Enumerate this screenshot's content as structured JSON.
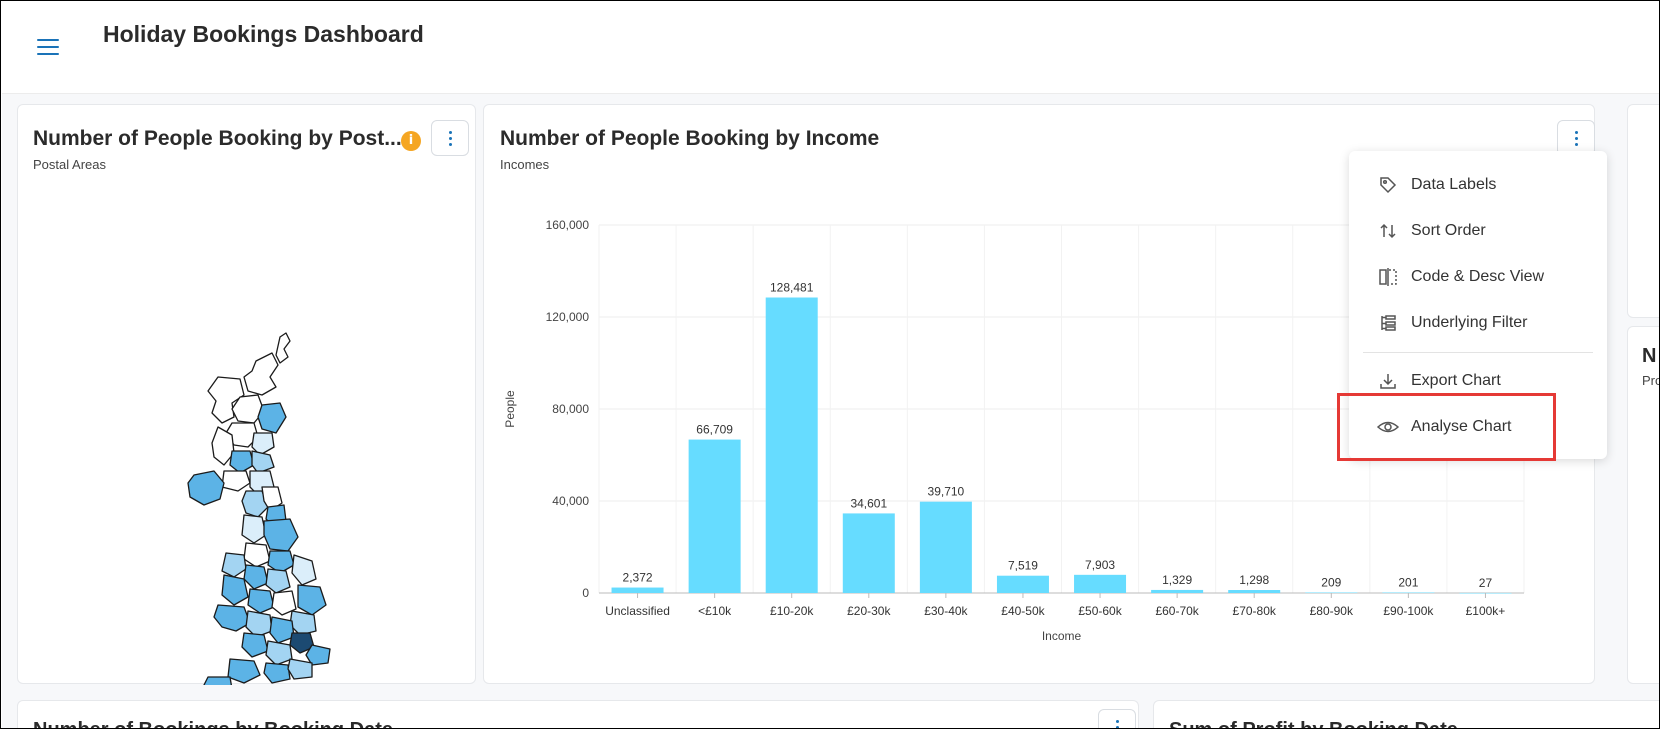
{
  "app": {
    "title": "Holiday Bookings Dashboard"
  },
  "map_card": {
    "title": "Number of People Booking by Post...",
    "subtitle": "Postal Areas",
    "info": "i"
  },
  "income_card": {
    "title": "Number of People Booking by Income",
    "subtitle": "Incomes"
  },
  "right_card": {
    "title_partial": "N",
    "subtitle_partial": "Pro"
  },
  "bottom_left_card": {
    "title": "Number of Bookings by Booking Date"
  },
  "bottom_right_card": {
    "title": "Sum of Profit by Booking Date"
  },
  "menu": {
    "items": [
      {
        "label": "Data Labels",
        "icon": "tag-icon"
      },
      {
        "label": "Sort Order",
        "icon": "sort-arrows-icon"
      },
      {
        "label": "Code & Desc View",
        "icon": "split-view-icon"
      },
      {
        "label": "Underlying Filter",
        "icon": "filter-tree-icon"
      },
      {
        "label": "Export Chart",
        "icon": "download-icon"
      },
      {
        "label": "Analyse Chart",
        "icon": "eye-icon"
      }
    ]
  },
  "colors": {
    "accent": "#1a73b8",
    "bar": "#66dcff",
    "highlight": "#e53935",
    "info": "#f5a623"
  },
  "chart_data": {
    "type": "bar",
    "xlabel": "Income",
    "ylabel": "People",
    "ylim": [
      0,
      160000
    ],
    "yticks": [
      "0",
      "40,000",
      "80,000",
      "120,000",
      "160,000"
    ],
    "categories": [
      "Unclassified",
      "<£10k",
      "£10-20k",
      "£20-30k",
      "£30-40k",
      "£40-50k",
      "£50-60k",
      "£60-70k",
      "£70-80k",
      "£80-90k",
      "£90-100k",
      "£100k+"
    ],
    "values": [
      2372,
      66709,
      128481,
      34601,
      39710,
      7519,
      7903,
      1329,
      1298,
      209,
      201,
      27
    ],
    "value_labels": [
      "2,372",
      "66,709",
      "128,481",
      "34,601",
      "39,710",
      "7,519",
      "7,903",
      "1,329",
      "1,298",
      "209",
      "201",
      "27"
    ],
    "grid": true
  }
}
